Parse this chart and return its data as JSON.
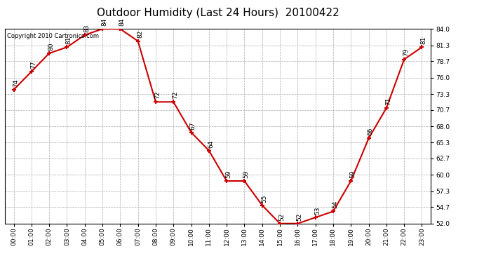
{
  "title": "Outdoor Humidity (Last 24 Hours)  20100422",
  "copyright": "Copyright 2010 Cartronics.com",
  "hours": [
    0,
    1,
    2,
    3,
    4,
    5,
    6,
    7,
    8,
    9,
    10,
    11,
    12,
    13,
    14,
    15,
    16,
    17,
    18,
    19,
    20,
    21,
    22,
    23
  ],
  "values": [
    74,
    77,
    80,
    81,
    83,
    84,
    84,
    82,
    72,
    72,
    67,
    64,
    59,
    59,
    55,
    52,
    52,
    53,
    54,
    59,
    66,
    71,
    79,
    81
  ],
  "ylim": [
    52.0,
    84.0
  ],
  "yticks": [
    52.0,
    54.7,
    57.3,
    60.0,
    62.7,
    65.3,
    68.0,
    70.7,
    73.3,
    76.0,
    78.7,
    81.3,
    84.0
  ],
  "line_color": "#cc0000",
  "marker_color": "#cc0000",
  "bg_color": "#ffffff",
  "grid_color": "#aaaaaa",
  "title_fontsize": 11,
  "label_fontsize": 6.5,
  "tick_fontsize": 6.5,
  "copyright_fontsize": 6
}
